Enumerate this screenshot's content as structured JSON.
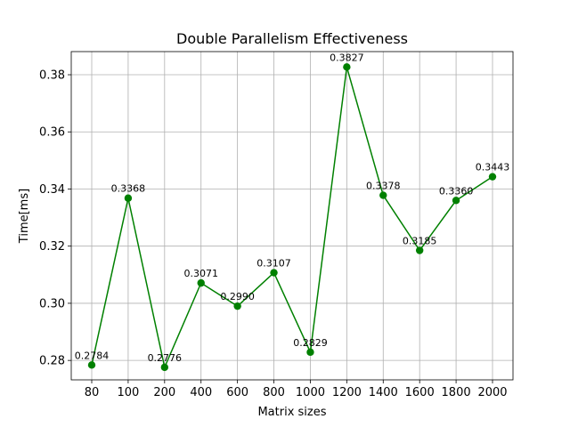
{
  "chart_data": {
    "type": "line",
    "title": "Double Parallelism Effectiveness",
    "xlabel": "Matrix sizes",
    "ylabel": "Time[ms]",
    "categories": [
      "80",
      "100",
      "200",
      "400",
      "600",
      "800",
      "1000",
      "1200",
      "1400",
      "1600",
      "1800",
      "2000"
    ],
    "series": [
      {
        "values": [
          0.2784,
          0.3368,
          0.2776,
          0.3071,
          0.299,
          0.3107,
          0.2829,
          0.3827,
          0.3378,
          0.3185,
          0.336,
          0.3443
        ],
        "color": "#008000",
        "marker": "circle"
      }
    ],
    "data_labels": [
      "0.2784",
      "0.3368",
      "0.2776",
      "0.3071",
      "0.2990",
      "0.3107",
      "0.2829",
      "0.3827",
      "0.3378",
      "0.3185",
      "0.3360",
      "0.3443"
    ],
    "yticks": [
      "0.28",
      "0.30",
      "0.32",
      "0.34",
      "0.36",
      "0.38"
    ],
    "ylim": [
      0.2732,
      0.3881
    ],
    "grid": true,
    "legend": "none"
  }
}
